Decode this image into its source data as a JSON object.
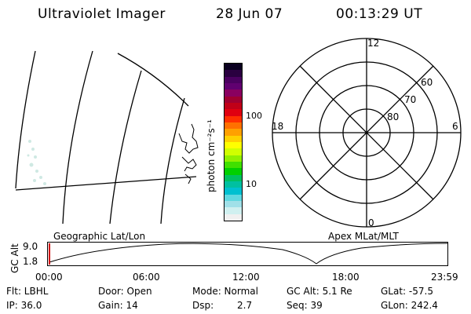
{
  "header": {
    "title": "Ultraviolet Imager",
    "date": "28 Jun 07",
    "time": "00:13:29 UT"
  },
  "colorbar": {
    "unit_label": "photon cm⁻²s⁻¹",
    "tick_100": "100",
    "tick_10": "10",
    "colors": [
      "#0a0020",
      "#2a0040",
      "#4a0060",
      "#600070",
      "#8a0060",
      "#a00030",
      "#c00018",
      "#e00010",
      "#ff3000",
      "#ff7000",
      "#ffa000",
      "#ffd000",
      "#ffff00",
      "#d0ff00",
      "#90f000",
      "#40e000",
      "#00d000",
      "#00c060",
      "#00c0a0",
      "#00c0d0",
      "#60d8e0",
      "#a0e0e8",
      "#d0f0f0",
      "#f0f0f0"
    ]
  },
  "polar": {
    "mlt_12": "12",
    "mlt_18": "18",
    "mlt_6": "6",
    "mlt_0": "0",
    "lat_60": "60",
    "lat_70": "70",
    "lat_80": "80"
  },
  "map_labels": {
    "geographic": "Geographic Lat/Lon",
    "apex": "Apex MLat/MLT"
  },
  "altitude_plot": {
    "ylabel": "GC Alt",
    "ytick_hi": "9.0",
    "ytick_lo": "1.8",
    "xticks": [
      "00:00",
      "06:00",
      "12:00",
      "18:00",
      "23:59"
    ]
  },
  "info": {
    "flt": "Flt: LBHL",
    "ip": "IP: 36.0",
    "door": "Door: Open",
    "gain": "Gain: 14",
    "mode": "Mode: Normal",
    "dsp_label": "Dsp:",
    "dsp_value": "2.7",
    "gc_alt": "GC Alt: 5.1 Re",
    "seq": "Seq: 39",
    "glat": "GLat: -57.5",
    "glon": "GLon: 242.4"
  }
}
